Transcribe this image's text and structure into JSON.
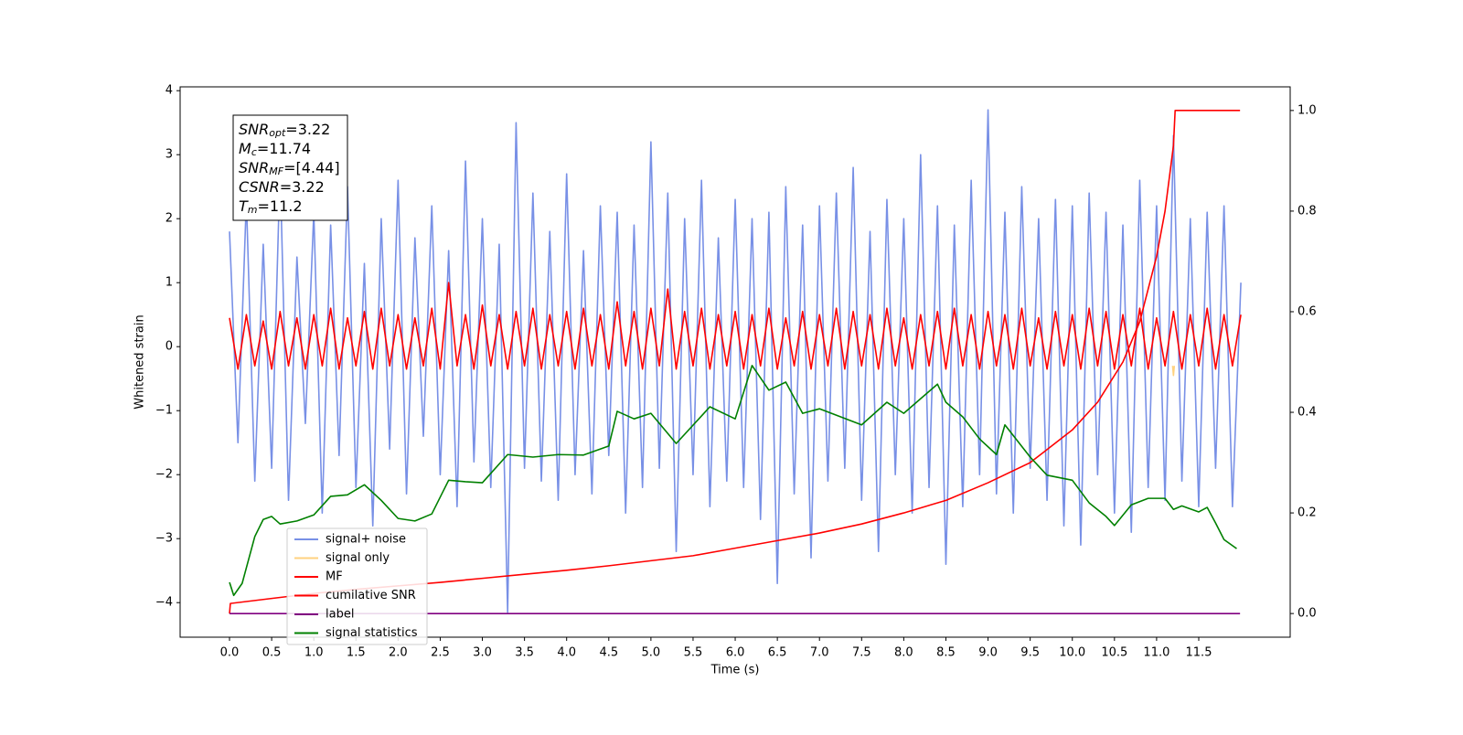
{
  "chart_data": {
    "type": "line",
    "xlabel": "Time (s)",
    "ylabel": "Whitened strain",
    "xlim": [
      -0.586,
      12.585
    ],
    "ylim": [
      -4.54,
      4.06
    ],
    "y2lim": [
      -0.047,
      1.047
    ],
    "xticks": [
      {
        "value": 0,
        "label": "0.0"
      },
      {
        "value": 0.5,
        "label": "0.5"
      },
      {
        "value": 1,
        "label": "1.0"
      },
      {
        "value": 1.5,
        "label": "1.5"
      },
      {
        "value": 2,
        "label": "2.0"
      },
      {
        "value": 2.5,
        "label": "2.5"
      },
      {
        "value": 3,
        "label": "3.0"
      },
      {
        "value": 3.5,
        "label": "3.5"
      },
      {
        "value": 4,
        "label": "4.0"
      },
      {
        "value": 4.5,
        "label": "4.5"
      },
      {
        "value": 5,
        "label": "5.0"
      },
      {
        "value": 5.5,
        "label": "5.5"
      },
      {
        "value": 6,
        "label": "6.0"
      },
      {
        "value": 6.5,
        "label": "6.5"
      },
      {
        "value": 7,
        "label": "7.0"
      },
      {
        "value": 7.5,
        "label": "7.5"
      },
      {
        "value": 8,
        "label": "8.0"
      },
      {
        "value": 8.5,
        "label": "8.5"
      },
      {
        "value": 9,
        "label": "9.0"
      },
      {
        "value": 9.5,
        "label": "9.5"
      },
      {
        "value": 10,
        "label": "10.0"
      },
      {
        "value": 10.5,
        "label": "10.5"
      },
      {
        "value": 11,
        "label": "11.0"
      },
      {
        "value": 11.5,
        "label": "11.5"
      }
    ],
    "yticks": [
      {
        "value": -4,
        "label": "−4"
      },
      {
        "value": -3,
        "label": "−3"
      },
      {
        "value": -2,
        "label": "−2"
      },
      {
        "value": -1,
        "label": "−1"
      },
      0,
      1,
      2,
      3,
      4
    ],
    "y2ticks": [
      {
        "value": 0,
        "label": "0.0"
      },
      {
        "value": 0.2,
        "label": "0.2"
      },
      {
        "value": 0.4,
        "label": "0.4"
      },
      {
        "value": 0.6,
        "label": "0.6"
      },
      {
        "value": 0.8,
        "label": "0.8"
      },
      {
        "value": 1,
        "label": "1.0"
      }
    ],
    "legend_loc": "lower left",
    "annotation_lines": [
      {
        "symbol": "SNR",
        "sub": "opt",
        "text": "=3.22"
      },
      {
        "symbol": "M",
        "sub": "c",
        "text": "=11.74"
      },
      {
        "symbol": "SNR",
        "sub": "MF",
        "text": "=[4.44]"
      },
      {
        "symbol": "CSNR",
        "text": "=3.22"
      },
      {
        "symbol": "T",
        "sub": "m",
        "text": "=11.2"
      }
    ],
    "x": [
      0,
      0.1,
      0.2,
      0.3,
      0.4,
      0.5,
      0.6,
      0.7,
      0.8,
      0.9,
      1,
      1.1,
      1.2,
      1.3,
      1.4,
      1.5,
      1.6,
      1.7,
      1.8,
      1.9,
      2,
      2.1,
      2.2,
      2.3,
      2.4,
      2.5,
      2.6,
      2.7,
      2.8,
      2.9,
      3,
      3.1,
      3.2,
      3.3,
      3.4,
      3.5,
      3.6,
      3.7,
      3.8,
      3.9,
      4,
      4.1,
      4.2,
      4.3,
      4.4,
      4.5,
      4.6,
      4.7,
      4.8,
      4.9,
      5,
      5.1,
      5.2,
      5.3,
      5.4,
      5.5,
      5.6,
      5.7,
      5.8,
      5.9,
      6,
      6.1,
      6.2,
      6.3,
      6.4,
      6.5,
      6.6,
      6.7,
      6.8,
      6.9,
      7,
      7.1,
      7.2,
      7.3,
      7.4,
      7.5,
      7.6,
      7.7,
      7.8,
      7.9,
      8,
      8.1,
      8.2,
      8.3,
      8.4,
      8.5,
      8.6,
      8.7,
      8.8,
      8.9,
      9,
      9.1,
      9.2,
      9.3,
      9.4,
      9.5,
      9.6,
      9.7,
      9.8,
      9.9,
      10,
      10.1,
      10.2,
      10.3,
      10.4,
      10.5,
      10.6,
      10.7,
      10.8,
      10.9,
      11,
      11.1,
      11.2,
      11.3,
      11.4,
      11.5,
      11.6,
      11.7,
      11.8,
      11.9,
      12
    ],
    "series": [
      {
        "name": "signal+ noise",
        "color": "#7890e6",
        "axis": "y",
        "values": [
          1.8,
          -1.5,
          2.3,
          -2.1,
          1.6,
          -1.9,
          2.8,
          -2.4,
          1.4,
          -1.2,
          2.1,
          -2.6,
          1.9,
          -1.7,
          2.5,
          -2.2,
          1.3,
          -2.8,
          2.0,
          -1.6,
          2.6,
          -2.3,
          1.7,
          -1.4,
          2.2,
          -2.0,
          1.5,
          -2.5,
          2.9,
          -1.8,
          2.0,
          -2.2,
          1.6,
          -4.15,
          3.5,
          -1.9,
          2.4,
          -2.1,
          1.8,
          -2.4,
          2.7,
          -2.0,
          1.5,
          -2.3,
          2.2,
          -1.7,
          2.1,
          -2.6,
          1.9,
          -2.2,
          3.2,
          -1.9,
          2.4,
          -3.2,
          2.0,
          -2.0,
          2.6,
          -2.5,
          1.7,
          -2.1,
          2.3,
          -2.2,
          2.0,
          -2.7,
          2.1,
          -3.7,
          2.5,
          -2.3,
          1.9,
          -3.3,
          2.2,
          -2.1,
          2.4,
          -1.9,
          2.8,
          -2.4,
          1.8,
          -3.2,
          2.3,
          -2.0,
          2.0,
          -2.6,
          3.0,
          -2.2,
          2.2,
          -3.4,
          1.9,
          -2.5,
          2.6,
          -2.0,
          3.7,
          -2.3,
          2.1,
          -2.6,
          2.5,
          -1.9,
          2.0,
          -2.4,
          2.3,
          -2.8,
          2.2,
          -3.1,
          2.4,
          -2.0,
          2.1,
          -2.6,
          1.9,
          -2.9,
          2.6,
          -2.2,
          2.2,
          -2.4,
          3.3,
          -2.1,
          2.0,
          -2.5,
          2.1,
          -1.9,
          2.2,
          -2.5,
          1.0
        ]
      },
      {
        "name": "signal only",
        "color": "#ffd27f",
        "axis": "y",
        "x": [
          11.19,
          11.2,
          11.21
        ],
        "values": [
          -0.3,
          -0.45,
          -0.3
        ]
      },
      {
        "name": "MF",
        "color": "#ff0000",
        "axis": "y",
        "values": [
          0.45,
          -0.35,
          0.5,
          -0.3,
          0.4,
          -0.35,
          0.55,
          -0.3,
          0.45,
          -0.35,
          0.5,
          -0.3,
          0.6,
          -0.35,
          0.45,
          -0.3,
          0.55,
          -0.35,
          0.6,
          -0.3,
          0.5,
          -0.35,
          0.45,
          -0.3,
          0.6,
          -0.35,
          1.0,
          -0.3,
          0.5,
          -0.35,
          0.65,
          -0.3,
          0.5,
          -0.35,
          0.55,
          -0.3,
          0.6,
          -0.35,
          0.5,
          -0.3,
          0.55,
          -0.35,
          0.6,
          -0.3,
          0.5,
          -0.35,
          0.7,
          -0.3,
          0.55,
          -0.35,
          0.6,
          -0.3,
          0.9,
          -0.35,
          0.55,
          -0.3,
          0.6,
          -0.35,
          0.5,
          -0.3,
          0.55,
          -0.35,
          0.5,
          -0.3,
          0.6,
          -0.35,
          0.45,
          -0.3,
          0.55,
          -0.35,
          0.5,
          -0.3,
          0.6,
          -0.35,
          0.55,
          -0.3,
          0.5,
          -0.35,
          0.6,
          -0.3,
          0.45,
          -0.35,
          0.5,
          -0.3,
          0.55,
          -0.35,
          0.6,
          -0.3,
          0.5,
          -0.35,
          0.55,
          -0.3,
          0.5,
          -0.35,
          0.6,
          -0.3,
          0.45,
          -0.35,
          0.55,
          -0.3,
          0.5,
          -0.35,
          0.6,
          -0.3,
          0.55,
          -0.35,
          0.5,
          -0.3,
          0.6,
          -0.35,
          0.45,
          -0.3,
          0.55,
          -0.35,
          0.5,
          -0.3,
          0.6,
          -0.35,
          0.5,
          -0.3,
          0.5
        ]
      },
      {
        "name": "cumilative SNR",
        "color": "#ff0000",
        "axis": "y2",
        "x": [
          0,
          0.01,
          0.5,
          1,
          1.5,
          2,
          2.5,
          3,
          3.5,
          4,
          4.5,
          5,
          5.5,
          6,
          6.5,
          7,
          7.5,
          8,
          8.5,
          9,
          9.5,
          10,
          10.3,
          10.6,
          10.8,
          11,
          11.1,
          11.2,
          11.22,
          11.99
        ],
        "values": [
          0.0,
          0.02,
          0.03,
          0.04,
          0.048,
          0.055,
          0.062,
          0.07,
          0.078,
          0.086,
          0.095,
          0.105,
          0.115,
          0.13,
          0.145,
          0.16,
          0.178,
          0.2,
          0.225,
          0.26,
          0.3,
          0.365,
          0.42,
          0.5,
          0.58,
          0.71,
          0.8,
          0.93,
          1.0,
          1.0
        ]
      },
      {
        "name": "label",
        "color": "#800080",
        "axis": "y2",
        "x": [
          0,
          11.99
        ],
        "values": [
          0,
          0
        ]
      },
      {
        "name": "signal statistics",
        "color": "#008000",
        "axis": "y2",
        "x": [
          0,
          0.05,
          0.15,
          0.3,
          0.4,
          0.5,
          0.6,
          0.8,
          1,
          1.2,
          1.4,
          1.6,
          1.8,
          2,
          2.2,
          2.4,
          2.6,
          2.8,
          3,
          3.3,
          3.6,
          3.9,
          4.2,
          4.5,
          4.6,
          4.8,
          5,
          5.3,
          5.7,
          6,
          6.2,
          6.4,
          6.6,
          6.8,
          7,
          7.5,
          7.8,
          8,
          8.4,
          8.5,
          8.7,
          8.9,
          9.1,
          9.2,
          9.5,
          9.7,
          10,
          10.2,
          10.4,
          10.5,
          10.7,
          10.9,
          11.1,
          11.2,
          11.3,
          11.5,
          11.6,
          11.7,
          11.8,
          11.95
        ],
        "values": [
          0.062,
          0.036,
          0.06,
          0.153,
          0.187,
          0.193,
          0.178,
          0.184,
          0.196,
          0.233,
          0.236,
          0.256,
          0.225,
          0.189,
          0.184,
          0.198,
          0.265,
          0.262,
          0.26,
          0.316,
          0.311,
          0.316,
          0.315,
          0.333,
          0.402,
          0.387,
          0.398,
          0.338,
          0.411,
          0.387,
          0.493,
          0.444,
          0.46,
          0.398,
          0.407,
          0.375,
          0.42,
          0.398,
          0.456,
          0.42,
          0.391,
          0.347,
          0.316,
          0.375,
          0.311,
          0.275,
          0.265,
          0.22,
          0.193,
          0.175,
          0.216,
          0.229,
          0.229,
          0.207,
          0.214,
          0.202,
          0.211,
          0.18,
          0.147,
          0.129
        ]
      }
    ]
  }
}
